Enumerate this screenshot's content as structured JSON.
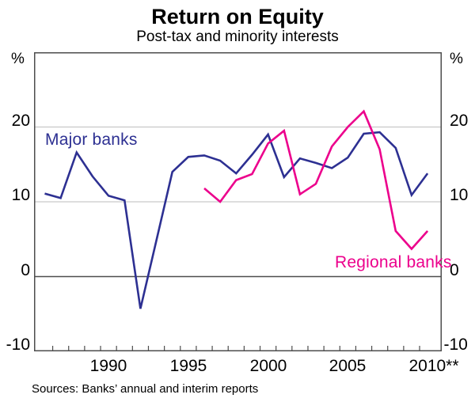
{
  "title": "Return on Equity",
  "subtitle": "Post-tax and minority interests",
  "source_note": "Sources: Banks’ annual and interim reports",
  "axis": {
    "unit_left": "%",
    "unit_right": "%",
    "y_ticks": [
      {
        "value": 20,
        "label": "20"
      },
      {
        "value": 10,
        "label": "10"
      },
      {
        "value": 0,
        "label": "0"
      },
      {
        "value": -10,
        "label": "-10"
      }
    ],
    "x_ticks": [
      {
        "year": 1990,
        "label": "1990"
      },
      {
        "year": 1995,
        "label": "1995"
      },
      {
        "year": 2000,
        "label": "2000"
      },
      {
        "year": 2005,
        "label": "2005"
      },
      {
        "year": 2010,
        "label": "2010**"
      }
    ]
  },
  "labels": {
    "major": "Major banks",
    "regional": "Regional banks"
  },
  "colors": {
    "major": "#2d3092",
    "regional": "#ec008c",
    "gridline": "#c9c9c9",
    "axis": "#4d4d4d"
  },
  "chart_data": {
    "type": "line",
    "title": "Return on Equity",
    "subtitle": "Post-tax and minority interests",
    "ylabel": "%",
    "ylim": [
      -10,
      30
    ],
    "xlim": [
      1985.3,
      2010.9
    ],
    "gridlines_y": [
      10,
      20
    ],
    "zero_line": 0,
    "grid": true,
    "legend_position": "inline-labels",
    "series": [
      {
        "name": "Major banks",
        "color": "#2d3092",
        "x": [
          1986,
          1987,
          1988,
          1989,
          1990,
          1991,
          1992,
          1993,
          1994,
          1995,
          1996,
          1997,
          1998,
          1999,
          2000,
          2001,
          2002,
          2003,
          2004,
          2005,
          2006,
          2007,
          2008,
          2009,
          2010
        ],
        "values": [
          11.1,
          10.5,
          16.6,
          13.4,
          10.8,
          10.2,
          -4.3,
          4.8,
          14.0,
          16.0,
          16.2,
          15.5,
          13.8,
          16.3,
          19.0,
          13.3,
          15.8,
          15.2,
          14.5,
          15.9,
          19.1,
          19.3,
          17.2,
          10.9,
          13.8
        ]
      },
      {
        "name": "Regional banks",
        "color": "#ec008c",
        "x": [
          1996,
          1997,
          1998,
          1999,
          2000,
          2001,
          2002,
          2003,
          2004,
          2005,
          2006,
          2007,
          2008,
          2009,
          2010
        ],
        "values": [
          11.8,
          10.0,
          12.9,
          13.7,
          17.8,
          19.5,
          11.0,
          12.4,
          17.4,
          20.0,
          22.1,
          17.0,
          6.1,
          3.7,
          6.1
        ]
      }
    ]
  }
}
